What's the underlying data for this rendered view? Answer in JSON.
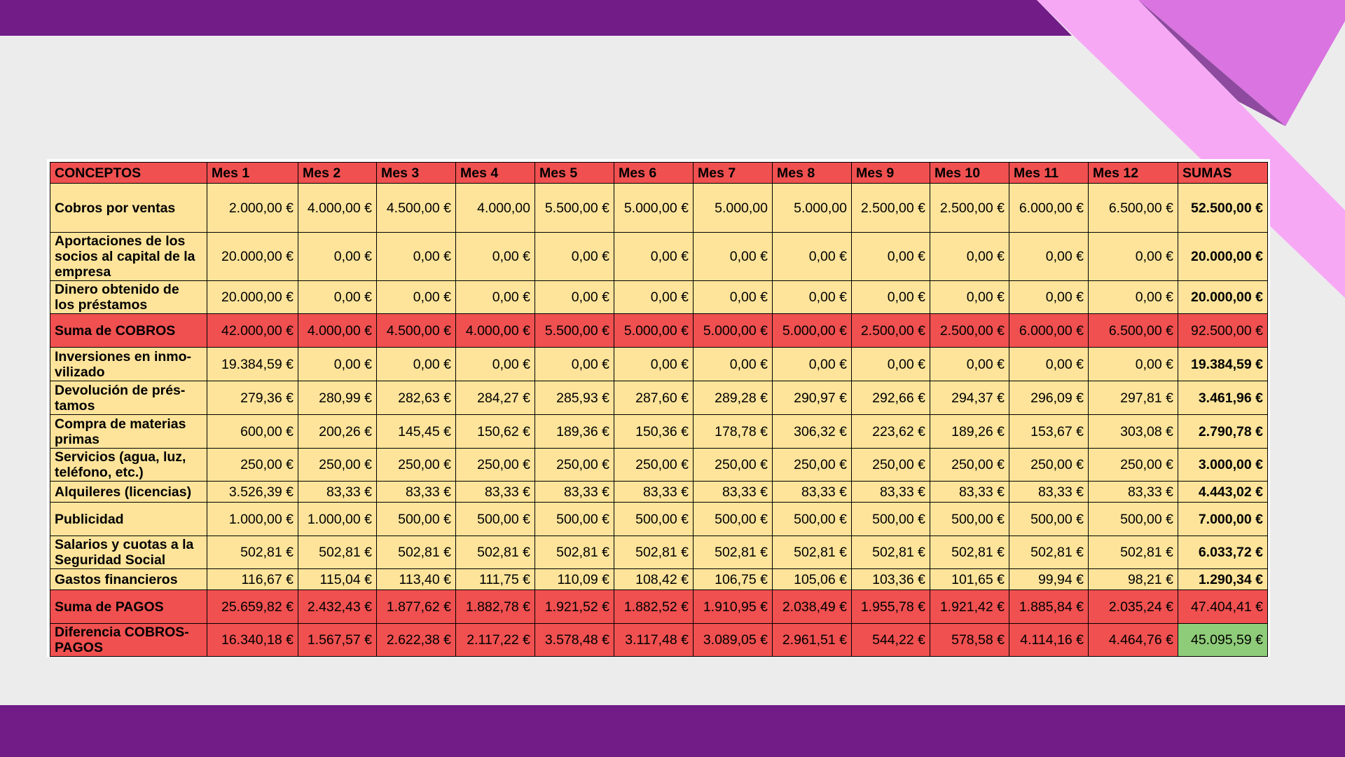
{
  "colors": {
    "bar_purple": "#711c87",
    "accent_pink": "#f7a8f5",
    "accent_violet": "#da74e0",
    "accent_dark_violet": "#8e4a9f",
    "header_red": "#f05050",
    "row_yellow": "#fde49a",
    "result_green": "#8fcc79"
  },
  "table": {
    "headers": [
      "CONCEPTOS",
      "Mes 1",
      "Mes 2",
      "Mes 3",
      "Mes 4",
      "Mes 5",
      "Mes 6",
      "Mes 7",
      "Mes 8",
      "Mes 9",
      "Mes 10",
      "Mes 11",
      "Mes 12",
      "SUMAS"
    ],
    "rows": [
      {
        "type": "row",
        "concept": "Cobros por ventas",
        "values": [
          "2.000,00 €",
          "4.000,00 €",
          "4.500,00 €",
          "4.000,00",
          "5.500,00 €",
          "5.000,00 €",
          "5.000,00",
          "5.000,00",
          "2.500,00 €",
          "2.500,00 €",
          "6.000,00 €",
          "6.500,00 €"
        ],
        "sum": "52.500,00 €"
      },
      {
        "type": "row",
        "concept": "Aportaciones de los socios al capital de la empresa",
        "values": [
          "20.000,00 €",
          "0,00 €",
          "0,00 €",
          "0,00 €",
          "0,00 €",
          "0,00 €",
          "0,00 €",
          "0,00 €",
          "0,00 €",
          "0,00 €",
          "0,00 €",
          "0,00 €"
        ],
        "sum": "20.000,00 €"
      },
      {
        "type": "row",
        "concept": "Dinero obtenido de los préstamos",
        "values": [
          "20.000,00 €",
          "0,00 €",
          "0,00 €",
          "0,00 €",
          "0,00 €",
          "0,00 €",
          "0,00 €",
          "0,00 €",
          "0,00 €",
          "0,00 €",
          "0,00 €",
          "0,00 €"
        ],
        "sum": "20.000,00 €"
      },
      {
        "type": "total",
        "concept": "Suma de COBROS",
        "values": [
          "42.000,00 €",
          "4.000,00 €",
          "4.500,00 €",
          "4.000,00 €",
          "5.500,00 €",
          "5.000,00 €",
          "5.000,00 €",
          "5.000,00 €",
          "2.500,00 €",
          "2.500,00 €",
          "6.000,00 €",
          "6.500,00 €"
        ],
        "sum": "92.500,00 €"
      },
      {
        "type": "row",
        "concept": "Inversiones en inmo-vilizado",
        "values": [
          "19.384,59 €",
          "0,00 €",
          "0,00 €",
          "0,00 €",
          "0,00 €",
          "0,00 €",
          "0,00 €",
          "0,00 €",
          "0,00 €",
          "0,00 €",
          "0,00 €",
          "0,00 €"
        ],
        "sum": "19.384,59 €"
      },
      {
        "type": "row",
        "concept": "Devolución de prés-tamos",
        "values": [
          "279,36 €",
          "280,99 €",
          "282,63 €",
          "284,27 €",
          "285,93 €",
          "287,60 €",
          "289,28 €",
          "290,97 €",
          "292,66 €",
          "294,37 €",
          "296,09 €",
          "297,81 €"
        ],
        "sum": "3.461,96 €"
      },
      {
        "type": "row",
        "concept": "Compra de materias primas",
        "values": [
          "600,00 €",
          "200,26 €",
          "145,45 €",
          "150,62 €",
          "189,36 €",
          "150,36 €",
          "178,78 €",
          "306,32 €",
          "223,62 €",
          "189,26 €",
          "153,67 €",
          "303,08 €"
        ],
        "sum": "2.790,78 €"
      },
      {
        "type": "row",
        "concept": "Servicios (agua, luz, teléfono, etc.)",
        "values": [
          "250,00 €",
          "250,00 €",
          "250,00 €",
          "250,00 €",
          "250,00 €",
          "250,00 €",
          "250,00 €",
          "250,00 €",
          "250,00 €",
          "250,00 €",
          "250,00 €",
          "250,00 €"
        ],
        "sum": "3.000,00 €"
      },
      {
        "type": "row",
        "concept": "Alquileres (licencias)",
        "values": [
          "3.526,39 €",
          "83,33 €",
          "83,33 €",
          "83,33 €",
          "83,33 €",
          "83,33 €",
          "83,33 €",
          "83,33 €",
          "83,33 €",
          "83,33 €",
          "83,33 €",
          "83,33 €"
        ],
        "sum": "4.443,02 €"
      },
      {
        "type": "row",
        "concept": "Publicidad",
        "values": [
          "1.000,00 €",
          "1.000,00 €",
          "500,00 €",
          "500,00 €",
          "500,00 €",
          "500,00 €",
          "500,00 €",
          "500,00 €",
          "500,00 €",
          "500,00 €",
          "500,00 €",
          "500,00 €"
        ],
        "sum": "7.000,00 €"
      },
      {
        "type": "row",
        "concept": "Salarios y cuotas a la Seguridad Social",
        "values": [
          "502,81 €",
          "502,81 €",
          "502,81 €",
          "502,81 €",
          "502,81 €",
          "502,81 €",
          "502,81 €",
          "502,81 €",
          "502,81 €",
          "502,81 €",
          "502,81 €",
          "502,81 €"
        ],
        "sum": "6.033,72 €"
      },
      {
        "type": "row",
        "concept": "Gastos financieros",
        "values": [
          "116,67 €",
          "115,04 €",
          "113,40 €",
          "111,75 €",
          "110,09 €",
          "108,42 €",
          "106,75 €",
          "105,06 €",
          "103,36 €",
          "101,65 €",
          "99,94 €",
          "98,21 €"
        ],
        "sum": "1.290,34 €"
      },
      {
        "type": "total",
        "concept": "Suma de PAGOS",
        "values": [
          "25.659,82 €",
          "2.432,43 €",
          "1.877,62 €",
          "1.882,78 €",
          "1.921,52 €",
          "1.882,52 €",
          "1.910,95 €",
          "2.038,49 €",
          "1.955,78 €",
          "1.921,42 €",
          "1.885,84 €",
          "2.035,24 €"
        ],
        "sum": "47.404,41 €"
      },
      {
        "type": "total diff",
        "concept": "Diferencia COBROS-PAGOS",
        "values": [
          "16.340,18 €",
          "1.567,57 €",
          "2.622,38 €",
          "2.117,22 €",
          "3.578,48 €",
          "3.117,48 €",
          "3.089,05 €",
          "2.961,51 €",
          "544,22 €",
          "578,58 €",
          "4.114,16 €",
          "4.464,76 €"
        ],
        "sum": "45.095,59 €"
      }
    ]
  }
}
